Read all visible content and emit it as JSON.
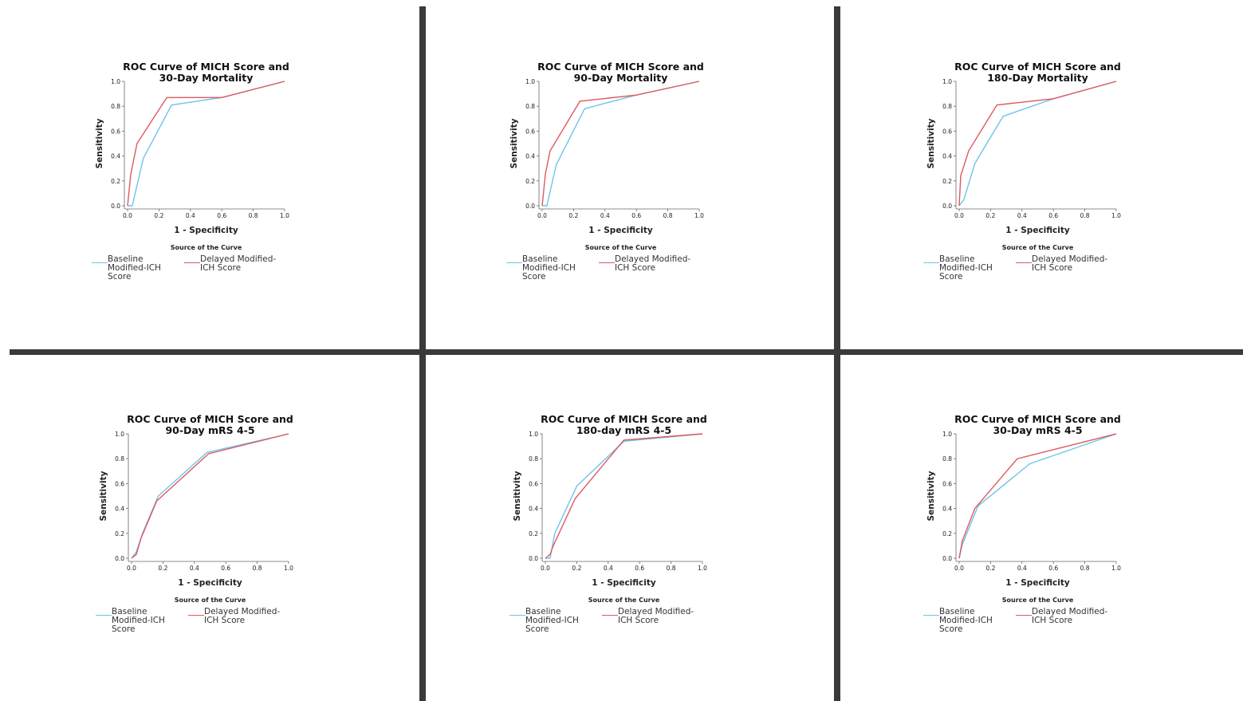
{
  "chart_data": [
    {
      "type": "line",
      "title": "ROC Curve of MICH Score and 30-Day Mortality",
      "xlabel": "1 - Specificity",
      "ylabel": "Sensitivity",
      "legend_title": "Source of the Curve",
      "xlim": [
        0,
        1
      ],
      "ylim": [
        0,
        1
      ],
      "xticks": [
        {
          "value": 0,
          "label": "0.0"
        },
        {
          "value": 0.2,
          "label": "0.2"
        },
        {
          "value": 0.4,
          "label": "0.4"
        },
        {
          "value": 0.6,
          "label": "0.6"
        },
        {
          "value": 0.8,
          "label": "0.8"
        },
        {
          "value": 1,
          "label": "1.0"
        }
      ],
      "yticks": [
        {
          "value": 0,
          "label": "0.0"
        },
        {
          "value": 0.2,
          "label": "0.2"
        },
        {
          "value": 0.4,
          "label": "0.4"
        },
        {
          "value": 0.6,
          "label": "0.6"
        },
        {
          "value": 0.8,
          "label": "0.8"
        },
        {
          "value": 1,
          "label": "1.0"
        }
      ],
      "series": [
        {
          "name": "Baseline Modified-ICH Score",
          "color": "#6ec4ea",
          "x": [
            0,
            0.03,
            0.1,
            0.28,
            0.6,
            1
          ],
          "values": [
            0,
            0,
            0.38,
            0.81,
            0.87,
            1
          ]
        },
        {
          "name": "Delayed Modified-ICH Score",
          "color": "#e0585e",
          "x": [
            0,
            0.02,
            0.06,
            0.25,
            0.6,
            1
          ],
          "values": [
            0,
            0.25,
            0.5,
            0.87,
            0.87,
            1
          ]
        }
      ]
    },
    {
      "type": "line",
      "title": "ROC Curve of MICH Score and 90-Day Mortality",
      "xlabel": "1 - Specificity",
      "ylabel": "Sensitivity",
      "legend_title": "Source of the Curve",
      "xlim": [
        0,
        1
      ],
      "ylim": [
        0,
        1
      ],
      "xticks": [
        {
          "value": 0,
          "label": "0.0"
        },
        {
          "value": 0.2,
          "label": "0.2"
        },
        {
          "value": 0.4,
          "label": "0.4"
        },
        {
          "value": 0.6,
          "label": "0.6"
        },
        {
          "value": 0.8,
          "label": "0.8"
        },
        {
          "value": 1,
          "label": "1.0"
        }
      ],
      "yticks": [
        {
          "value": 0,
          "label": "0.0"
        },
        {
          "value": 0.2,
          "label": "0.2"
        },
        {
          "value": 0.4,
          "label": "0.4"
        },
        {
          "value": 0.6,
          "label": "0.6"
        },
        {
          "value": 0.8,
          "label": "0.8"
        },
        {
          "value": 1,
          "label": "1.0"
        }
      ],
      "series": [
        {
          "name": "Baseline Modified-ICH Score",
          "color": "#6ec4ea",
          "x": [
            0,
            0.03,
            0.09,
            0.27,
            0.6,
            1
          ],
          "values": [
            0,
            0,
            0.33,
            0.78,
            0.89,
            1
          ]
        },
        {
          "name": "Delayed Modified-ICH Score",
          "color": "#e0585e",
          "x": [
            0,
            0.02,
            0.05,
            0.24,
            0.6,
            1
          ],
          "values": [
            0,
            0.25,
            0.44,
            0.84,
            0.89,
            1
          ]
        }
      ]
    },
    {
      "type": "line",
      "title": "ROC Curve of MICH Score and 180-Day Mortality",
      "xlabel": "1 - Specificity",
      "ylabel": "Sensitivity",
      "legend_title": "Source of the Curve",
      "xlim": [
        0,
        1
      ],
      "ylim": [
        0,
        1
      ],
      "xticks": [
        {
          "value": 0,
          "label": "0.0"
        },
        {
          "value": 0.2,
          "label": "0.2"
        },
        {
          "value": 0.4,
          "label": "0.4"
        },
        {
          "value": 0.6,
          "label": "0.6"
        },
        {
          "value": 0.8,
          "label": "0.8"
        },
        {
          "value": 1,
          "label": "1.0"
        }
      ],
      "yticks": [
        {
          "value": 0,
          "label": "0.0"
        },
        {
          "value": 0.2,
          "label": "0.2"
        },
        {
          "value": 0.4,
          "label": "0.4"
        },
        {
          "value": 0.6,
          "label": "0.6"
        },
        {
          "value": 0.8,
          "label": "0.8"
        },
        {
          "value": 1,
          "label": "1.0"
        }
      ],
      "series": [
        {
          "name": "Baseline Modified-ICH Score",
          "color": "#6ec4ea",
          "x": [
            0,
            0.03,
            0.1,
            0.28,
            0.6,
            1
          ],
          "values": [
            0,
            0.05,
            0.34,
            0.72,
            0.86,
            1
          ]
        },
        {
          "name": "Delayed Modified-ICH Score",
          "color": "#e0585e",
          "x": [
            0,
            0.01,
            0.06,
            0.24,
            0.6,
            1
          ],
          "values": [
            0,
            0.24,
            0.44,
            0.81,
            0.86,
            1
          ]
        }
      ]
    },
    {
      "type": "line",
      "title": "ROC Curve of MICH Score and 90-Day mRS 4-5",
      "xlabel": "1 - Specificity",
      "ylabel": "Sensitivity",
      "legend_title": "Source of the Curve",
      "xlim": [
        0,
        1
      ],
      "ylim": [
        0,
        1
      ],
      "xticks": [
        {
          "value": 0,
          "label": "0.0"
        },
        {
          "value": 0.2,
          "label": "0.2"
        },
        {
          "value": 0.4,
          "label": "0.4"
        },
        {
          "value": 0.6,
          "label": "0.6"
        },
        {
          "value": 0.8,
          "label": "0.8"
        },
        {
          "value": 1,
          "label": "1.0"
        }
      ],
      "yticks": [
        {
          "value": 0,
          "label": "0.0"
        },
        {
          "value": 0.2,
          "label": "0.2"
        },
        {
          "value": 0.4,
          "label": "0.4"
        },
        {
          "value": 0.6,
          "label": "0.6"
        },
        {
          "value": 0.8,
          "label": "0.8"
        },
        {
          "value": 1,
          "label": "1.0"
        }
      ],
      "series": [
        {
          "name": "Baseline Modified-ICH Score",
          "color": "#6ec4ea",
          "x": [
            0,
            0.03,
            0.07,
            0.17,
            0.48,
            1
          ],
          "values": [
            0,
            0.05,
            0.2,
            0.5,
            0.85,
            1
          ]
        },
        {
          "name": "Delayed Modified-ICH Score",
          "color": "#e0585e",
          "x": [
            0,
            0.03,
            0.06,
            0.16,
            0.49,
            1
          ],
          "values": [
            0,
            0.03,
            0.16,
            0.46,
            0.84,
            1
          ]
        }
      ]
    },
    {
      "type": "line",
      "title": "ROC Curve of MICH Score and 180-day mRS 4-5",
      "xlabel": "1 - Specificity",
      "ylabel": "Sensitivity",
      "legend_title": "Source of the Curve",
      "xlim": [
        0,
        1
      ],
      "ylim": [
        0,
        1
      ],
      "xticks": [
        {
          "value": 0,
          "label": "0.0"
        },
        {
          "value": 0.2,
          "label": "0.2"
        },
        {
          "value": 0.4,
          "label": "0.4"
        },
        {
          "value": 0.6,
          "label": "0.6"
        },
        {
          "value": 0.8,
          "label": "0.8"
        },
        {
          "value": 1,
          "label": "1.0"
        }
      ],
      "yticks": [
        {
          "value": 0,
          "label": "0.0"
        },
        {
          "value": 0.2,
          "label": "0.2"
        },
        {
          "value": 0.4,
          "label": "0.4"
        },
        {
          "value": 0.6,
          "label": "0.6"
        },
        {
          "value": 0.8,
          "label": "0.8"
        },
        {
          "value": 1,
          "label": "1.0"
        }
      ],
      "series": [
        {
          "name": "Baseline Modified-ICH Score",
          "color": "#6ec4ea",
          "x": [
            0,
            0.03,
            0.06,
            0.2,
            0.5,
            1
          ],
          "values": [
            0,
            0,
            0.2,
            0.58,
            0.94,
            1
          ]
        },
        {
          "name": "Delayed Modified-ICH Score",
          "color": "#e0585e",
          "x": [
            0,
            0.03,
            0.05,
            0.19,
            0.5,
            1
          ],
          "values": [
            0,
            0.03,
            0.1,
            0.48,
            0.95,
            1
          ]
        }
      ]
    },
    {
      "type": "line",
      "title": "ROC Curve of MICH Score and 30-Day mRS 4-5",
      "xlabel": "1 - Specificity",
      "ylabel": "Sensitivity",
      "legend_title": "Source of the Curve",
      "xlim": [
        0,
        1
      ],
      "ylim": [
        0,
        1
      ],
      "xticks": [
        {
          "value": 0,
          "label": "0.0"
        },
        {
          "value": 0.2,
          "label": "0.2"
        },
        {
          "value": 0.4,
          "label": "0.4"
        },
        {
          "value": 0.6,
          "label": "0.6"
        },
        {
          "value": 0.8,
          "label": "0.8"
        },
        {
          "value": 1,
          "label": "1.0"
        }
      ],
      "yticks": [
        {
          "value": 0,
          "label": "0.0"
        },
        {
          "value": 0.2,
          "label": "0.2"
        },
        {
          "value": 0.4,
          "label": "0.4"
        },
        {
          "value": 0.6,
          "label": "0.6"
        },
        {
          "value": 0.8,
          "label": "0.8"
        },
        {
          "value": 1,
          "label": "1.0"
        }
      ],
      "series": [
        {
          "name": "Baseline Modified-ICH Score",
          "color": "#6ec4ea",
          "x": [
            0,
            0.02,
            0.12,
            0.45,
            1
          ],
          "values": [
            0,
            0.11,
            0.42,
            0.76,
            1
          ]
        },
        {
          "name": "Delayed Modified-ICH Score",
          "color": "#e0585e",
          "x": [
            0,
            0.02,
            0.1,
            0.37,
            1
          ],
          "values": [
            0,
            0.14,
            0.4,
            0.8,
            1
          ]
        }
      ]
    }
  ]
}
